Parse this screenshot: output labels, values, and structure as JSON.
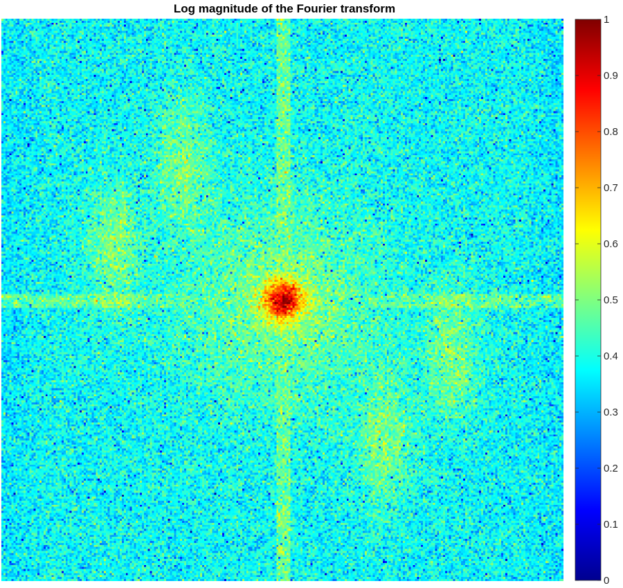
{
  "chart_data": {
    "type": "heatmap",
    "title": "Log magnitude of the Fourier transform",
    "xlabel": "",
    "ylabel": "",
    "colormap": "jet",
    "colorbar": {
      "range": [
        0,
        1
      ],
      "ticks": [
        0,
        0.1,
        0.2,
        0.3,
        0.4,
        0.5,
        0.6,
        0.7,
        0.8,
        0.9,
        1
      ],
      "tick_labels": [
        "0",
        "0.1",
        "0.2",
        "0.3",
        "0.4",
        "0.5",
        "0.6",
        "0.7",
        "0.8",
        "0.9",
        "1"
      ],
      "position": "right"
    },
    "grid": false,
    "features": {
      "center_peak_value": 0.95,
      "background_value": 0.38,
      "edge_value": 0.22,
      "axis_streak_value": 0.5
    }
  }
}
